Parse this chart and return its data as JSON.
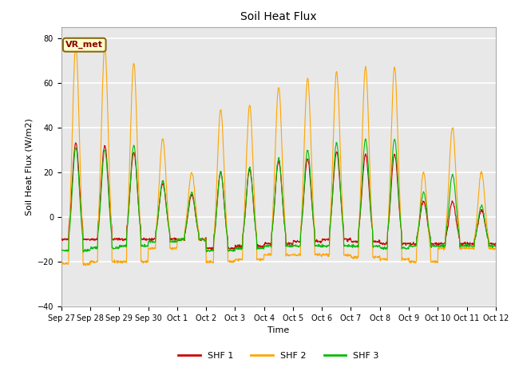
{
  "title": "Soil Heat Flux",
  "ylabel": "Soil Heat Flux (W/m2)",
  "xlabel": "Time",
  "ylim": [
    -40,
    85
  ],
  "yticks": [
    -40,
    -20,
    0,
    20,
    40,
    60,
    80
  ],
  "figsize": [
    6.4,
    4.8
  ],
  "dpi": 100,
  "plot_bg": "#e8e8e8",
  "fig_bg": "#ffffff",
  "grid_color": "#d0d0d0",
  "colors": {
    "SHF 1": "#cc0000",
    "SHF 2": "#ffa500",
    "SHF 3": "#00bb00"
  },
  "vr_met_label": "VR_met",
  "xtick_labels": [
    "Sep 27",
    "Sep 28",
    "Sep 29",
    "Sep 30",
    "Oct 1",
    "Oct 2",
    "Oct 3",
    "Oct 4",
    "Oct 5",
    "Oct 6",
    "Oct 7",
    "Oct 8",
    "Oct 9",
    "Oct 10",
    "Oct 11",
    "Oct 12"
  ],
  "n_days": 15,
  "pts_per_day": 96,
  "day_peaks_shf2": [
    77,
    76,
    69,
    35,
    20,
    48,
    50,
    58,
    62,
    65,
    67,
    67,
    20,
    40,
    20
  ],
  "day_peaks_shf1": [
    33,
    32,
    29,
    15,
    10,
    20,
    21,
    25,
    26,
    29,
    28,
    28,
    7,
    7,
    3
  ],
  "day_peaks_shf3": [
    31,
    30,
    32,
    16,
    11,
    20,
    22,
    26,
    30,
    33,
    35,
    35,
    11,
    19,
    5
  ],
  "night_shf2": [
    -21,
    -20,
    -20,
    -14,
    -10,
    -20,
    -19,
    -17,
    -17,
    -17,
    -18,
    -19,
    -20,
    -14,
    -14
  ],
  "night_shf1": [
    -10,
    -10,
    -10,
    -10,
    -10,
    -14,
    -13,
    -12,
    -11,
    -10,
    -11,
    -12,
    -12,
    -12,
    -12
  ],
  "night_shf3": [
    -15,
    -14,
    -13,
    -11,
    -10,
    -15,
    -14,
    -13,
    -13,
    -13,
    -13,
    -14,
    -13,
    -13,
    -13
  ]
}
